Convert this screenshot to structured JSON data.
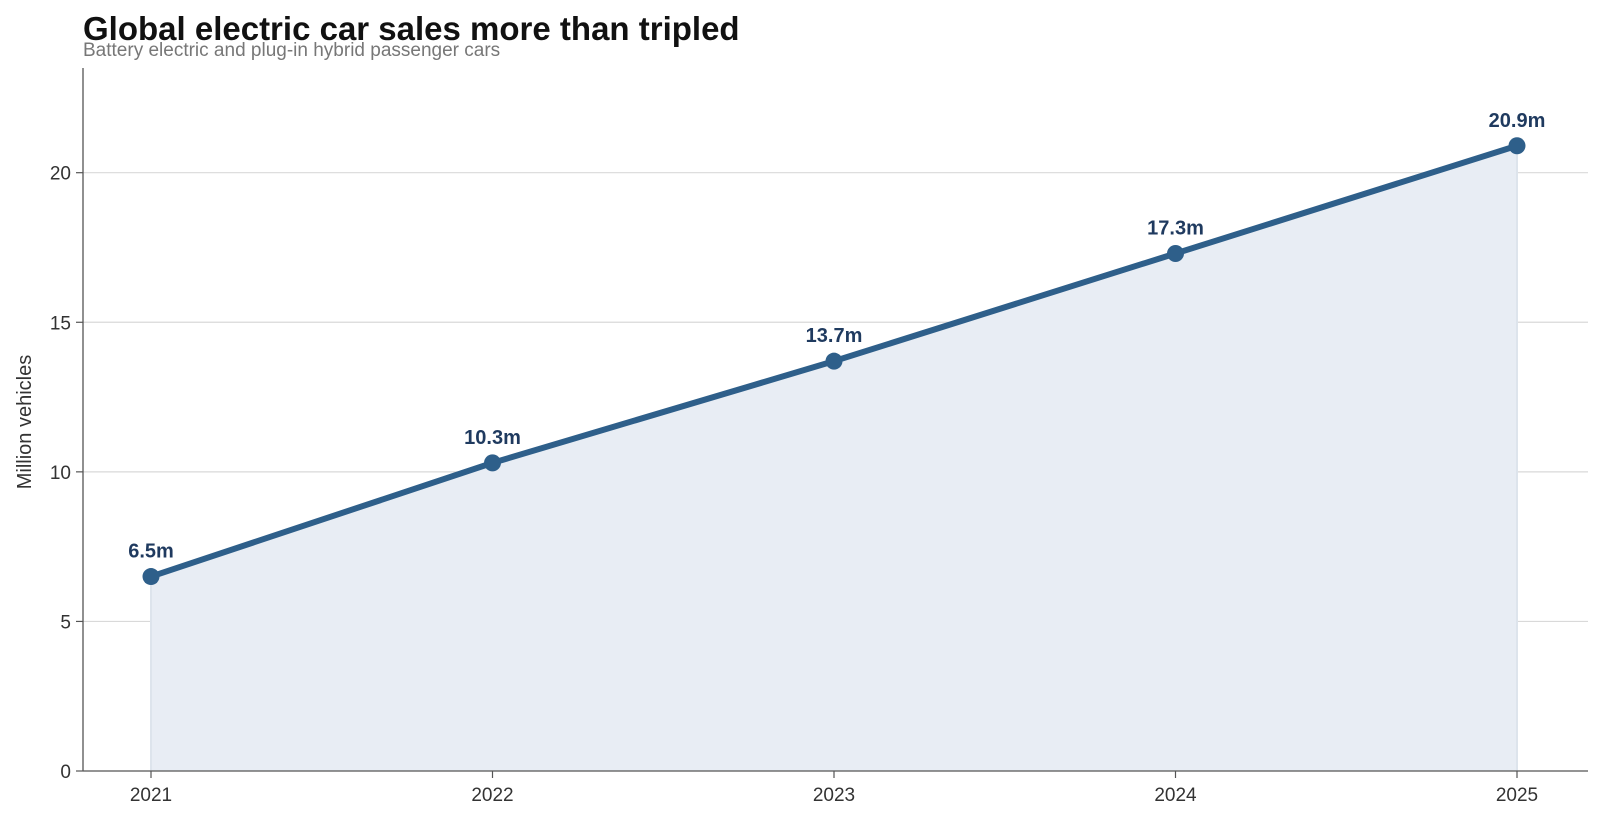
{
  "chart_data": {
    "type": "area",
    "title": "Global electric car sales more than tripled",
    "subtitle": "Battery electric and plug-in hybrid passenger cars",
    "xlabel": "",
    "ylabel": "Million vehicles",
    "x": [
      "2021",
      "2022",
      "2023",
      "2024",
      "2025"
    ],
    "series": [
      {
        "values": [
          6.5,
          10.3,
          13.7,
          17.3,
          20.9
        ],
        "labels": [
          "6.5m",
          "10.3m",
          "13.7m",
          "17.3m",
          "20.9m"
        ]
      }
    ],
    "ylim": [
      0,
      23.5
    ],
    "yticks": [
      0,
      5,
      10,
      15,
      20
    ],
    "grid": "horizontal",
    "legend": "none",
    "colors": {
      "line": "#2e5f8a",
      "fill": "#e8edf4",
      "label": "#1f3a5f"
    }
  }
}
